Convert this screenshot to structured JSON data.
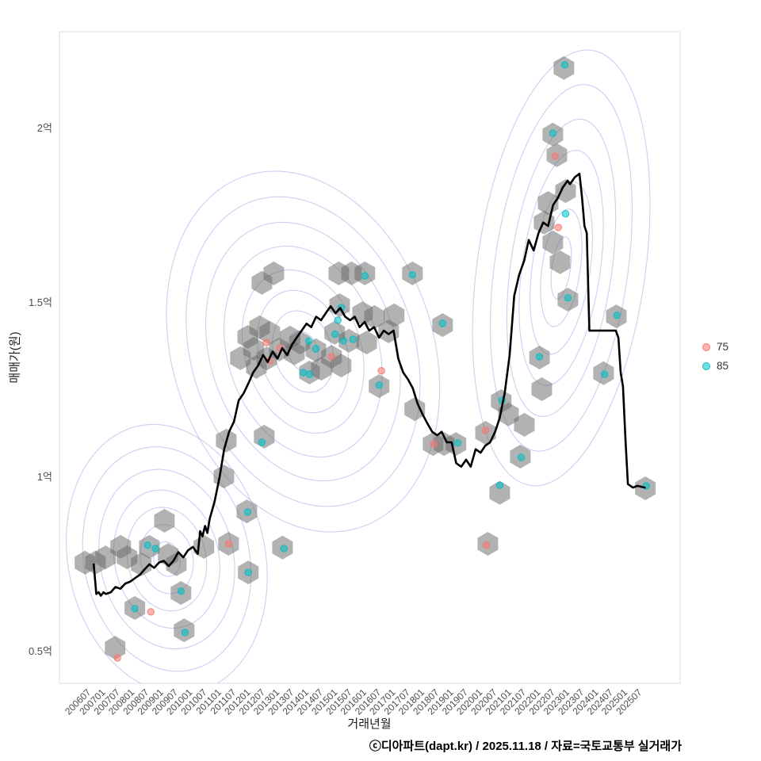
{
  "figure": {
    "xlabel": "거래년월",
    "ylabel": "매매가(원)",
    "caption": "ⓒ디아파트(dapt.kr) / 2025.11.18 / 자료=국토교통부 실거래가"
  },
  "legend": {
    "items": [
      {
        "label": "75",
        "color": "#f8766d"
      },
      {
        "label": "85",
        "color": "#00bfc4"
      }
    ]
  },
  "chart_data": {
    "type": "scatter",
    "overlays": [
      "hexbin",
      "density-contour",
      "median-line"
    ],
    "title": "",
    "xlabel": "거래년월",
    "ylabel": "매매가(원)",
    "legend_position": "right",
    "grid": false,
    "x_domain": [
      2005.4,
      2026.8
    ],
    "y_domain": [
      0.409,
      2.277
    ],
    "y_ticks": [
      {
        "value": 0.5,
        "label": "0.5억"
      },
      {
        "value": 1.0,
        "label": "1억"
      },
      {
        "value": 1.5,
        "label": "1.5억"
      },
      {
        "value": 2.0,
        "label": "2억"
      }
    ],
    "x_ticks": [
      {
        "value": 2006.5,
        "label": "200607"
      },
      {
        "value": 2007.0,
        "label": "200701"
      },
      {
        "value": 2007.5,
        "label": "200707"
      },
      {
        "value": 2008.0,
        "label": "200801"
      },
      {
        "value": 2008.5,
        "label": "200807"
      },
      {
        "value": 2009.0,
        "label": "200901"
      },
      {
        "value": 2009.5,
        "label": "200907"
      },
      {
        "value": 2010.0,
        "label": "201001"
      },
      {
        "value": 2010.5,
        "label": "201007"
      },
      {
        "value": 2011.0,
        "label": "201101"
      },
      {
        "value": 2011.5,
        "label": "201107"
      },
      {
        "value": 2012.0,
        "label": "201201"
      },
      {
        "value": 2012.5,
        "label": "201207"
      },
      {
        "value": 2013.0,
        "label": "201301"
      },
      {
        "value": 2013.5,
        "label": "201307"
      },
      {
        "value": 2014.0,
        "label": "201401"
      },
      {
        "value": 2014.5,
        "label": "201407"
      },
      {
        "value": 2015.0,
        "label": "201501"
      },
      {
        "value": 2015.5,
        "label": "201507"
      },
      {
        "value": 2016.0,
        "label": "201601"
      },
      {
        "value": 2016.5,
        "label": "201607"
      },
      {
        "value": 2017.0,
        "label": "201701"
      },
      {
        "value": 2017.5,
        "label": "201707"
      },
      {
        "value": 2018.0,
        "label": "201801"
      },
      {
        "value": 2018.5,
        "label": "201807"
      },
      {
        "value": 2019.0,
        "label": "201901"
      },
      {
        "value": 2019.5,
        "label": "201907"
      },
      {
        "value": 2020.0,
        "label": "202001"
      },
      {
        "value": 2020.5,
        "label": "202007"
      },
      {
        "value": 2021.0,
        "label": "202101"
      },
      {
        "value": 2021.5,
        "label": "202107"
      },
      {
        "value": 2022.0,
        "label": "202201"
      },
      {
        "value": 2022.5,
        "label": "202207"
      },
      {
        "value": 2023.0,
        "label": "202301"
      },
      {
        "value": 2023.5,
        "label": "202307"
      },
      {
        "value": 2024.0,
        "label": "202401"
      },
      {
        "value": 2024.5,
        "label": "202407"
      },
      {
        "value": 2025.0,
        "label": "202501"
      },
      {
        "value": 2025.5,
        "label": "202507"
      }
    ],
    "colors": {
      "hexbin": "#666666",
      "contour": "#b7c0ee",
      "line": "#000000",
      "series75": "#f8766d",
      "series85": "#00bfc4"
    },
    "median_line": [
      [
        2006.58,
        0.75
      ],
      [
        2006.67,
        0.665
      ],
      [
        2006.75,
        0.67
      ],
      [
        2006.83,
        0.66
      ],
      [
        2006.92,
        0.67
      ],
      [
        2007.0,
        0.665
      ],
      [
        2007.17,
        0.67
      ],
      [
        2007.33,
        0.685
      ],
      [
        2007.5,
        0.68
      ],
      [
        2007.67,
        0.695
      ],
      [
        2007.83,
        0.7
      ],
      [
        2008.0,
        0.71
      ],
      [
        2008.17,
        0.72
      ],
      [
        2008.33,
        0.735
      ],
      [
        2008.5,
        0.75
      ],
      [
        2008.67,
        0.74
      ],
      [
        2008.83,
        0.755
      ],
      [
        2009.0,
        0.76
      ],
      [
        2009.17,
        0.745
      ],
      [
        2009.33,
        0.76
      ],
      [
        2009.5,
        0.785
      ],
      [
        2009.67,
        0.77
      ],
      [
        2009.83,
        0.79
      ],
      [
        2010.0,
        0.8
      ],
      [
        2010.17,
        0.78
      ],
      [
        2010.25,
        0.845
      ],
      [
        2010.33,
        0.83
      ],
      [
        2010.42,
        0.86
      ],
      [
        2010.5,
        0.84
      ],
      [
        2010.58,
        0.88
      ],
      [
        2010.75,
        0.93
      ],
      [
        2010.92,
        1.0
      ],
      [
        2011.08,
        1.08
      ],
      [
        2011.25,
        1.13
      ],
      [
        2011.42,
        1.16
      ],
      [
        2011.58,
        1.22
      ],
      [
        2011.75,
        1.24
      ],
      [
        2011.92,
        1.27
      ],
      [
        2012.08,
        1.3
      ],
      [
        2012.25,
        1.32
      ],
      [
        2012.42,
        1.35
      ],
      [
        2012.58,
        1.33
      ],
      [
        2012.75,
        1.36
      ],
      [
        2012.92,
        1.34
      ],
      [
        2013.08,
        1.37
      ],
      [
        2013.25,
        1.35
      ],
      [
        2013.42,
        1.38
      ],
      [
        2013.58,
        1.4
      ],
      [
        2013.75,
        1.42
      ],
      [
        2013.92,
        1.44
      ],
      [
        2014.08,
        1.43
      ],
      [
        2014.25,
        1.46
      ],
      [
        2014.42,
        1.45
      ],
      [
        2014.58,
        1.47
      ],
      [
        2014.75,
        1.49
      ],
      [
        2014.92,
        1.47
      ],
      [
        2015.08,
        1.485
      ],
      [
        2015.25,
        1.46
      ],
      [
        2015.42,
        1.45
      ],
      [
        2015.58,
        1.46
      ],
      [
        2015.75,
        1.43
      ],
      [
        2015.92,
        1.445
      ],
      [
        2016.08,
        1.42
      ],
      [
        2016.25,
        1.43
      ],
      [
        2016.42,
        1.4
      ],
      [
        2016.58,
        1.42
      ],
      [
        2016.75,
        1.41
      ],
      [
        2016.92,
        1.42
      ],
      [
        2017.08,
        1.34
      ],
      [
        2017.25,
        1.3
      ],
      [
        2017.42,
        1.28
      ],
      [
        2017.58,
        1.255
      ],
      [
        2017.75,
        1.21
      ],
      [
        2017.92,
        1.18
      ],
      [
        2018.08,
        1.155
      ],
      [
        2018.25,
        1.13
      ],
      [
        2018.42,
        1.12
      ],
      [
        2018.58,
        1.13
      ],
      [
        2018.75,
        1.1
      ],
      [
        2018.92,
        1.1
      ],
      [
        2019.08,
        1.04
      ],
      [
        2019.25,
        1.03
      ],
      [
        2019.42,
        1.05
      ],
      [
        2019.58,
        1.03
      ],
      [
        2019.75,
        1.08
      ],
      [
        2019.92,
        1.07
      ],
      [
        2020.08,
        1.09
      ],
      [
        2020.25,
        1.1
      ],
      [
        2020.42,
        1.13
      ],
      [
        2020.58,
        1.17
      ],
      [
        2020.75,
        1.24
      ],
      [
        2020.92,
        1.35
      ],
      [
        2021.08,
        1.52
      ],
      [
        2021.25,
        1.58
      ],
      [
        2021.42,
        1.62
      ],
      [
        2021.58,
        1.68
      ],
      [
        2021.75,
        1.65
      ],
      [
        2021.92,
        1.7
      ],
      [
        2022.08,
        1.73
      ],
      [
        2022.25,
        1.72
      ],
      [
        2022.42,
        1.78
      ],
      [
        2022.58,
        1.8
      ],
      [
        2022.75,
        1.83
      ],
      [
        2022.92,
        1.85
      ],
      [
        2023.0,
        1.84
      ],
      [
        2023.17,
        1.86
      ],
      [
        2023.33,
        1.87
      ],
      [
        2023.42,
        1.8
      ],
      [
        2023.5,
        1.72
      ],
      [
        2023.58,
        1.7
      ],
      [
        2023.67,
        1.42
      ],
      [
        2024.0,
        1.42
      ],
      [
        2024.33,
        1.42
      ],
      [
        2024.58,
        1.42
      ],
      [
        2024.67,
        1.4
      ],
      [
        2024.75,
        1.3
      ],
      [
        2024.83,
        1.26
      ],
      [
        2024.92,
        1.1
      ],
      [
        2025.0,
        0.98
      ],
      [
        2025.17,
        0.97
      ],
      [
        2025.33,
        0.975
      ],
      [
        2025.58,
        0.97
      ]
    ],
    "hexbins": [
      [
        2006.28,
        0.755
      ],
      [
        2006.64,
        0.755
      ],
      [
        2006.99,
        0.77
      ],
      [
        2007.32,
        0.511
      ],
      [
        2007.51,
        0.8
      ],
      [
        2007.73,
        0.77
      ],
      [
        2008.0,
        0.625
      ],
      [
        2008.22,
        0.75
      ],
      [
        2008.5,
        0.8
      ],
      [
        2009.02,
        0.875
      ],
      [
        2009.15,
        0.777
      ],
      [
        2009.43,
        0.75
      ],
      [
        2009.59,
        0.668
      ],
      [
        2009.7,
        0.561
      ],
      [
        2010.38,
        0.8
      ],
      [
        2011.07,
        1.002
      ],
      [
        2011.15,
        1.105
      ],
      [
        2011.23,
        0.809
      ],
      [
        2011.64,
        1.341
      ],
      [
        2011.86,
        0.902
      ],
      [
        2011.89,
        1.402
      ],
      [
        2011.91,
        0.727
      ],
      [
        2012.1,
        1.368
      ],
      [
        2012.19,
        1.316
      ],
      [
        2012.3,
        1.43
      ],
      [
        2012.38,
        1.557
      ],
      [
        2012.46,
        1.116
      ],
      [
        2012.55,
        1.34
      ],
      [
        2012.65,
        1.414
      ],
      [
        2012.79,
        1.584
      ],
      [
        2012.98,
        1.366
      ],
      [
        2013.09,
        0.798
      ],
      [
        2013.35,
        1.4
      ],
      [
        2013.5,
        1.355
      ],
      [
        2013.69,
        1.386
      ],
      [
        2014.02,
        1.3
      ],
      [
        2014.24,
        1.364
      ],
      [
        2014.43,
        1.311
      ],
      [
        2014.78,
        1.345
      ],
      [
        2014.89,
        1.414
      ],
      [
        2015.03,
        1.584
      ],
      [
        2015.06,
        1.493
      ],
      [
        2015.11,
        1.32
      ],
      [
        2015.38,
        1.391
      ],
      [
        2015.47,
        1.584
      ],
      [
        2015.85,
        1.47
      ],
      [
        2015.93,
        1.584
      ],
      [
        2015.99,
        1.386
      ],
      [
        2016.26,
        1.459
      ],
      [
        2016.42,
        1.261
      ],
      [
        2016.75,
        1.418
      ],
      [
        2016.94,
        1.464
      ],
      [
        2017.57,
        1.584
      ],
      [
        2017.65,
        1.195
      ],
      [
        2018.28,
        1.095
      ],
      [
        2018.61,
        1.436
      ],
      [
        2018.66,
        1.095
      ],
      [
        2019.07,
        1.095
      ],
      [
        2020.09,
        1.127
      ],
      [
        2020.17,
        0.809
      ],
      [
        2020.58,
        0.955
      ],
      [
        2020.63,
        1.218
      ],
      [
        2020.88,
        1.18
      ],
      [
        2021.29,
        1.059
      ],
      [
        2021.43,
        1.15
      ],
      [
        2021.95,
        1.343
      ],
      [
        2022.03,
        1.252
      ],
      [
        2022.11,
        1.73
      ],
      [
        2022.25,
        1.786
      ],
      [
        2022.41,
        1.673
      ],
      [
        2022.41,
        1.982
      ],
      [
        2022.55,
        1.923
      ],
      [
        2022.66,
        1.616
      ],
      [
        2022.79,
        2.173
      ],
      [
        2022.85,
        1.82
      ],
      [
        2022.93,
        1.509
      ],
      [
        2024.16,
        1.298
      ],
      [
        2024.6,
        1.461
      ],
      [
        2025.6,
        0.968
      ]
    ],
    "series": [
      {
        "name": "75",
        "color": "#f8766d",
        "points": [
          [
            2007.4,
            0.482
          ],
          [
            2008.55,
            0.614
          ],
          [
            2011.23,
            0.809
          ],
          [
            2012.54,
            1.386
          ],
          [
            2012.65,
            1.334
          ],
          [
            2013.0,
            1.37
          ],
          [
            2014.78,
            1.345
          ],
          [
            2016.5,
            1.305
          ],
          [
            2018.31,
            1.095
          ],
          [
            2020.09,
            1.134
          ],
          [
            2020.12,
            0.805
          ],
          [
            2022.49,
            1.92
          ],
          [
            2022.6,
            1.716
          ]
        ]
      },
      {
        "name": "85",
        "color": "#00bfc4",
        "points": [
          [
            2008.0,
            0.623
          ],
          [
            2008.44,
            0.805
          ],
          [
            2008.71,
            0.795
          ],
          [
            2009.59,
            0.673
          ],
          [
            2009.73,
            0.555
          ],
          [
            2011.89,
            0.9
          ],
          [
            2011.91,
            0.727
          ],
          [
            2012.38,
            1.1
          ],
          [
            2013.14,
            0.795
          ],
          [
            2013.8,
            1.3
          ],
          [
            2014.0,
            1.39
          ],
          [
            2014.02,
            1.295
          ],
          [
            2014.24,
            1.368
          ],
          [
            2014.9,
            1.41
          ],
          [
            2015.0,
            1.45
          ],
          [
            2015.11,
            1.486
          ],
          [
            2015.19,
            1.391
          ],
          [
            2015.52,
            1.395
          ],
          [
            2015.93,
            1.577
          ],
          [
            2016.42,
            1.264
          ],
          [
            2017.57,
            1.58
          ],
          [
            2018.61,
            1.441
          ],
          [
            2019.13,
            1.098
          ],
          [
            2020.58,
            0.977
          ],
          [
            2020.66,
            1.22
          ],
          [
            2021.32,
            1.057
          ],
          [
            2021.95,
            1.345
          ],
          [
            2022.41,
            1.986
          ],
          [
            2022.82,
            2.182
          ],
          [
            2022.85,
            1.755
          ],
          [
            2022.93,
            1.514
          ],
          [
            2024.19,
            1.295
          ],
          [
            2024.62,
            1.464
          ],
          [
            2025.63,
            0.975
          ]
        ]
      }
    ],
    "contour_groups": [
      {
        "cx": 2009.1,
        "cy": 0.765,
        "rot": -12,
        "levels": [
          [
            0.45,
            0.05
          ],
          [
            0.9,
            0.1
          ],
          [
            1.35,
            0.15
          ],
          [
            1.8,
            0.2
          ],
          [
            2.3,
            0.26
          ],
          [
            2.85,
            0.325
          ],
          [
            3.4,
            0.39
          ]
        ]
      },
      {
        "cx": 2013.8,
        "cy": 1.36,
        "rot": -18,
        "levels": [
          [
            0.5,
            0.06
          ],
          [
            1.0,
            0.12
          ],
          [
            1.5,
            0.18
          ],
          [
            2.0,
            0.24
          ],
          [
            2.6,
            0.31
          ],
          [
            3.2,
            0.38
          ],
          [
            3.85,
            0.455
          ],
          [
            4.5,
            0.53
          ]
        ]
      },
      {
        "cx": 2022.7,
        "cy": 1.6,
        "rot": 8,
        "levels": [
          [
            0.32,
            0.09
          ],
          [
            0.66,
            0.17
          ],
          [
            1.0,
            0.25
          ],
          [
            1.35,
            0.34
          ],
          [
            1.75,
            0.43
          ],
          [
            2.3,
            0.53
          ],
          [
            2.9,
            0.63
          ]
        ]
      }
    ]
  }
}
